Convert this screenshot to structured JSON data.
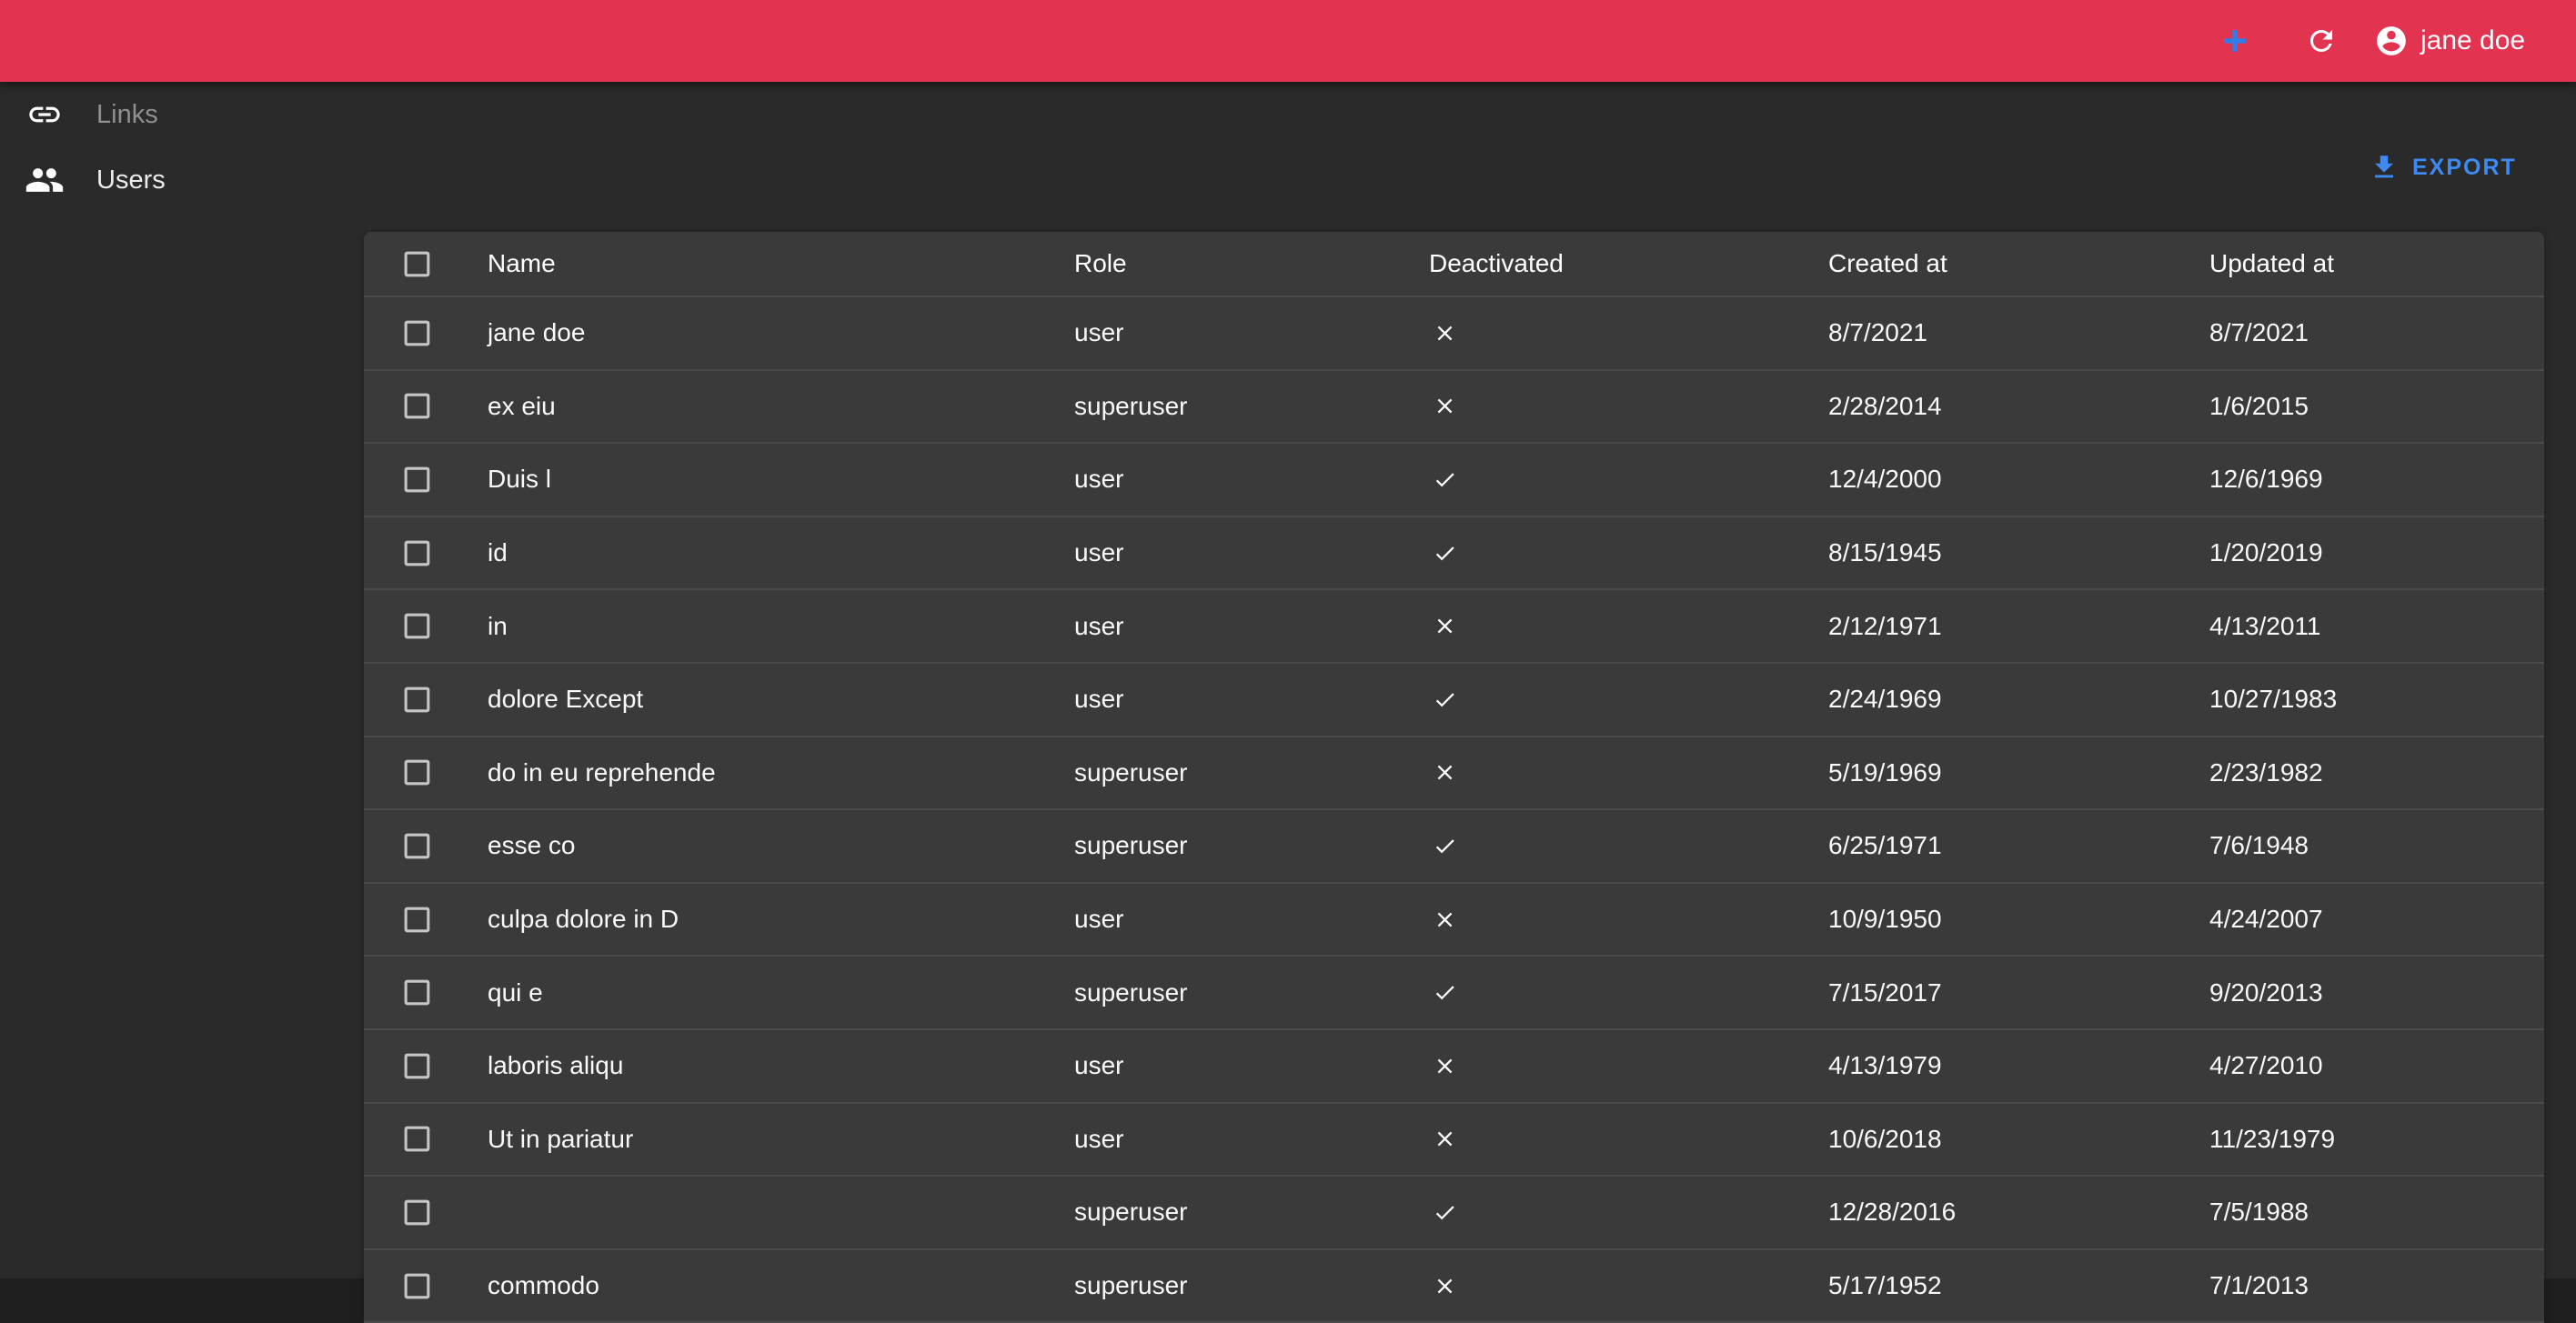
{
  "colors": {
    "app_bar": "#e23351",
    "accent_blue": "#2e7de9",
    "export_blue": "#3d8bf2",
    "background": "#2a2a2a",
    "paper": "#3a3a3a"
  },
  "app_bar": {
    "menu_icon": "menu-icon",
    "add_icon": "plus-icon",
    "refresh_icon": "refresh-icon",
    "user": {
      "avatar_icon": "account-circle-icon",
      "name": "jane doe"
    }
  },
  "sidebar": {
    "items": [
      {
        "label": "Links",
        "icon": "link-icon",
        "active": false
      },
      {
        "label": "Users",
        "icon": "people-icon",
        "active": true
      }
    ]
  },
  "toolbar": {
    "export_label": "EXPORT",
    "export_icon": "download-icon"
  },
  "table": {
    "columns": [
      "Name",
      "Role",
      "Deactivated",
      "Created at",
      "Updated at"
    ],
    "rows": [
      {
        "name": "jane doe",
        "role": "user",
        "deactivated": false,
        "created_at": "8/7/2021",
        "updated_at": "8/7/2021"
      },
      {
        "name": "ex eiu",
        "role": "superuser",
        "deactivated": false,
        "created_at": "2/28/2014",
        "updated_at": "1/6/2015"
      },
      {
        "name": "Duis l",
        "role": "user",
        "deactivated": true,
        "created_at": "12/4/2000",
        "updated_at": "12/6/1969"
      },
      {
        "name": "id",
        "role": "user",
        "deactivated": true,
        "created_at": "8/15/1945",
        "updated_at": "1/20/2019"
      },
      {
        "name": "in",
        "role": "user",
        "deactivated": false,
        "created_at": "2/12/1971",
        "updated_at": "4/13/2011"
      },
      {
        "name": "dolore Except",
        "role": "user",
        "deactivated": true,
        "created_at": "2/24/1969",
        "updated_at": "10/27/1983"
      },
      {
        "name": "do in eu reprehende",
        "role": "superuser",
        "deactivated": false,
        "created_at": "5/19/1969",
        "updated_at": "2/23/1982"
      },
      {
        "name": "esse co",
        "role": "superuser",
        "deactivated": true,
        "created_at": "6/25/1971",
        "updated_at": "7/6/1948"
      },
      {
        "name": "culpa dolore in D",
        "role": "user",
        "deactivated": false,
        "created_at": "10/9/1950",
        "updated_at": "4/24/2007"
      },
      {
        "name": "qui e",
        "role": "superuser",
        "deactivated": true,
        "created_at": "7/15/2017",
        "updated_at": "9/20/2013"
      },
      {
        "name": "laboris aliqu",
        "role": "user",
        "deactivated": false,
        "created_at": "4/13/1979",
        "updated_at": "4/27/2010"
      },
      {
        "name": "Ut in pariatur",
        "role": "user",
        "deactivated": false,
        "created_at": "10/6/2018",
        "updated_at": "11/23/1979"
      },
      {
        "name": "",
        "role": "superuser",
        "deactivated": true,
        "created_at": "12/28/2016",
        "updated_at": "7/5/1988"
      },
      {
        "name": "commodo",
        "role": "superuser",
        "deactivated": false,
        "created_at": "5/17/1952",
        "updated_at": "7/1/2013"
      }
    ]
  }
}
